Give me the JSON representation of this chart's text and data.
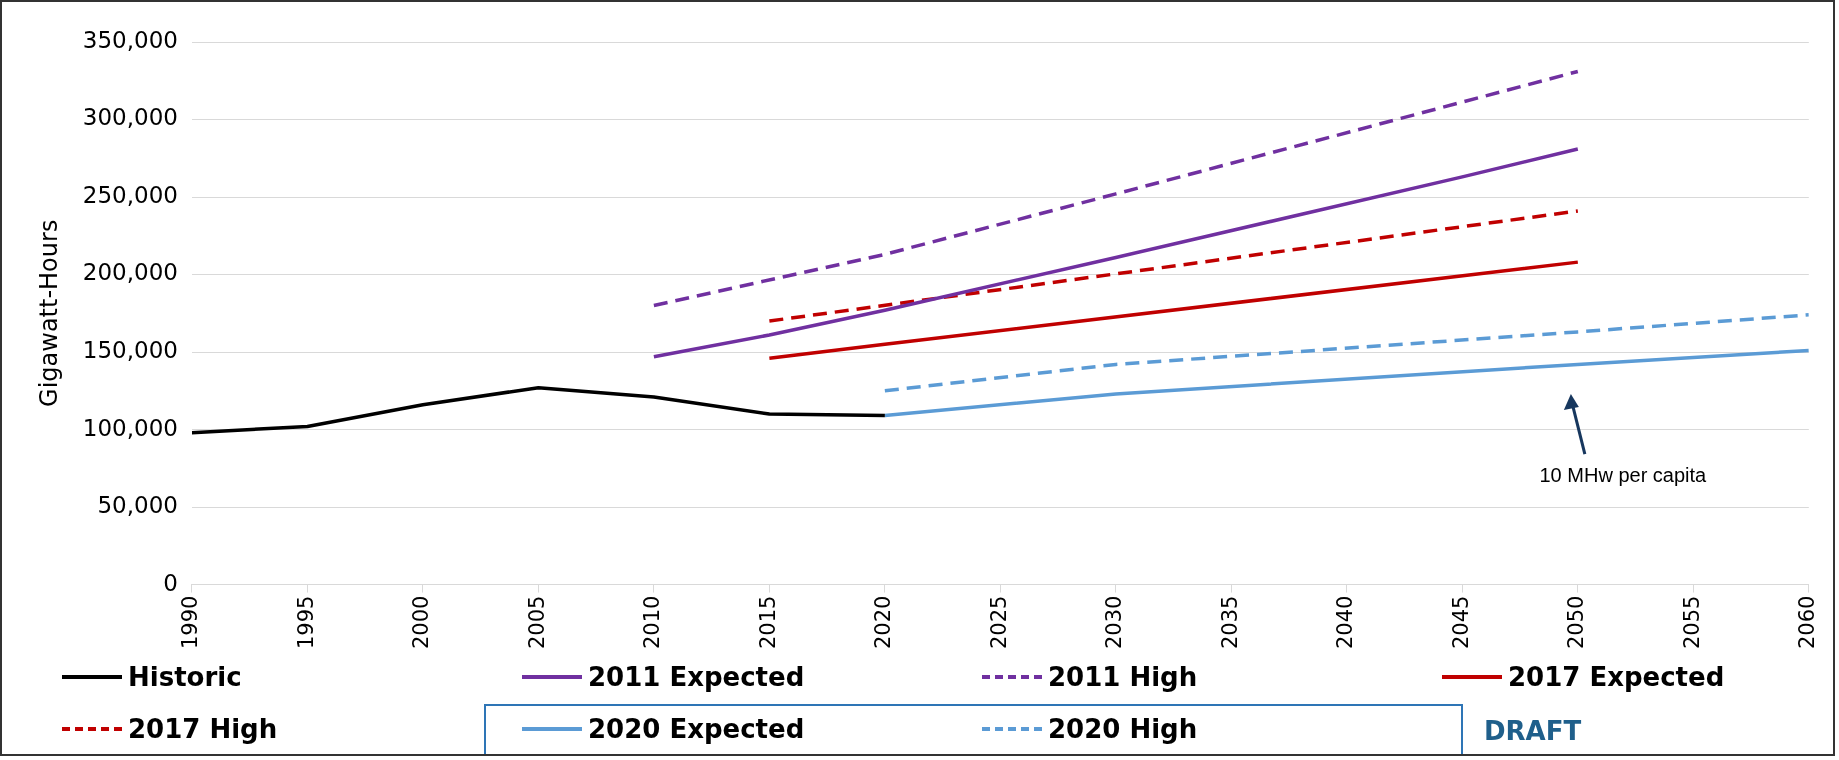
{
  "chart_data": {
    "type": "line",
    "ylabel": "Gigawatt-Hours",
    "xlim": [
      1990,
      2060
    ],
    "xticks": [
      1990,
      1995,
      2000,
      2005,
      2010,
      2015,
      2020,
      2025,
      2030,
      2035,
      2040,
      2045,
      2050,
      2055,
      2060
    ],
    "ylim": [
      0,
      350000
    ],
    "yticks": [
      0,
      {
        "value": 50000,
        "label": "50,000"
      },
      {
        "value": 100000,
        "label": "100,000"
      },
      {
        "value": 150000,
        "label": "150,000"
      },
      {
        "value": 200000,
        "label": "200,000"
      },
      {
        "value": 250000,
        "label": "250,000"
      },
      {
        "value": 300000,
        "label": "300,000"
      },
      {
        "value": 350000,
        "label": "350,000"
      }
    ],
    "grid": "y",
    "legend": "bottom",
    "marker": "none",
    "series": [
      {
        "name": "Historic",
        "color": "#000000",
        "line_style": "solid",
        "x": [
          1990,
          1995,
          2000,
          2005,
          2010,
          2015,
          2020
        ],
        "values": [
          98000,
          102000,
          116000,
          127000,
          121000,
          110000,
          109000
        ]
      },
      {
        "name": "2011 Expected",
        "color": "#7030a0",
        "line_style": "solid",
        "x": [
          2010,
          2015,
          2020,
          2030,
          2045,
          2050
        ],
        "values": [
          147000,
          161000,
          177000,
          211000,
          263000,
          281000
        ]
      },
      {
        "name": "2011 High",
        "color": "#7030a0",
        "line_style": "dashed",
        "x": [
          2010,
          2020,
          2030,
          2050
        ],
        "values": [
          180000,
          213000,
          252000,
          331000
        ]
      },
      {
        "name": "2017 Expected",
        "color": "#c00000",
        "line_style": "solid",
        "x": [
          2015,
          2020,
          2050
        ],
        "values": [
          146000,
          155000,
          208000
        ]
      },
      {
        "name": "2017 High",
        "color": "#c00000",
        "line_style": "dashed",
        "x": [
          2015,
          2050
        ],
        "values": [
          170000,
          241000
        ]
      },
      {
        "name": "2020 Expected",
        "color": "#5b9bd5",
        "line_style": "solid",
        "x": [
          2020,
          2030,
          2050,
          2060
        ],
        "values": [
          109000,
          123000,
          142000,
          151000
        ]
      },
      {
        "name": "2020 High",
        "color": "#5b9bd5",
        "line_style": "dashed",
        "x": [
          2020,
          2030,
          2050,
          2060
        ],
        "values": [
          125000,
          142000,
          163000,
          174000
        ]
      }
    ],
    "annotations": [
      "10 MHw per capita",
      "DRAFT"
    ]
  }
}
